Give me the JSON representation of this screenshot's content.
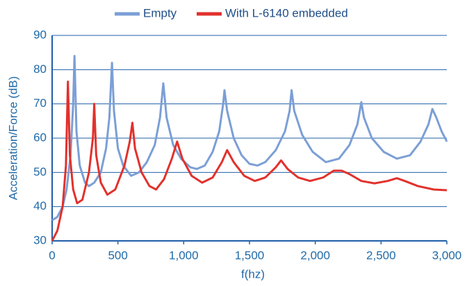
{
  "chart_data": {
    "type": "line",
    "x_label": "f(hz)",
    "y_label": "Acceleration/Force (dB)",
    "xlim": [
      0,
      3000
    ],
    "ylim": [
      30,
      90
    ],
    "xticks": [
      0,
      500,
      {
        "value": 1000,
        "label": "1,000"
      },
      {
        "value": 1500,
        "label": "1,500"
      },
      {
        "value": 2000,
        "label": "2,000"
      },
      {
        "value": 2500,
        "label": "2,500"
      },
      {
        "value": 3000,
        "label": "3,000"
      }
    ],
    "yticks": [
      30,
      40,
      50,
      60,
      70,
      80,
      90
    ],
    "grid": true,
    "legend": "top",
    "series": [
      {
        "name": "Empty",
        "color": "#7b9fd6",
        "x": [
          0,
          40,
          80,
          110,
          140,
          160,
          170,
          185,
          210,
          250,
          280,
          320,
          370,
          410,
          435,
          455,
          470,
          500,
          540,
          600,
          660,
          720,
          780,
          820,
          845,
          870,
          920,
          980,
          1050,
          1100,
          1160,
          1220,
          1270,
          1300,
          1310,
          1330,
          1380,
          1440,
          1500,
          1560,
          1620,
          1700,
          1770,
          1805,
          1820,
          1840,
          1900,
          1980,
          2080,
          2180,
          2260,
          2320,
          2350,
          2370,
          2430,
          2520,
          2620,
          2720,
          2800,
          2860,
          2890,
          2920,
          2960,
          3000
        ],
        "values": [
          36,
          37,
          40,
          45,
          55,
          70,
          84,
          62,
          52,
          47,
          46,
          47,
          50,
          57,
          66,
          82,
          68,
          57,
          52,
          49,
          50,
          53,
          58,
          66,
          76,
          66,
          58,
          54,
          51.5,
          51,
          52,
          56,
          62,
          70,
          74,
          68,
          60,
          55,
          52.5,
          52,
          53,
          56.5,
          62,
          68,
          74,
          68,
          61,
          56,
          53,
          54,
          58,
          64,
          70.5,
          66,
          60,
          56,
          54,
          55,
          59,
          64,
          68.5,
          66,
          62,
          59
        ]
      },
      {
        "name": "With L-6140 embedded",
        "color": "#e2312c",
        "x": [
          0,
          40,
          80,
          105,
          120,
          135,
          160,
          190,
          230,
          280,
          310,
          320,
          335,
          370,
          420,
          480,
          550,
          590,
          610,
          630,
          680,
          740,
          790,
          850,
          910,
          950,
          990,
          1060,
          1140,
          1220,
          1290,
          1330,
          1380,
          1460,
          1540,
          1620,
          1700,
          1740,
          1790,
          1870,
          1960,
          2060,
          2140,
          2200,
          2260,
          2350,
          2450,
          2550,
          2620,
          2680,
          2780,
          2900,
          3000
        ],
        "values": [
          30,
          33,
          40,
          52,
          76.5,
          55,
          45,
          41,
          42,
          50,
          60,
          70,
          55,
          47,
          43.5,
          45,
          52,
          59,
          64.5,
          57,
          50,
          46,
          45,
          48,
          54,
          59,
          54,
          49,
          47,
          48.5,
          53,
          56.5,
          53,
          49,
          47.5,
          48.5,
          51.5,
          53.5,
          51,
          48.5,
          47.5,
          48.5,
          50.5,
          50.5,
          49.5,
          47.5,
          46.8,
          47.5,
          48.3,
          47.5,
          46,
          45,
          44.8
        ]
      }
    ]
  }
}
